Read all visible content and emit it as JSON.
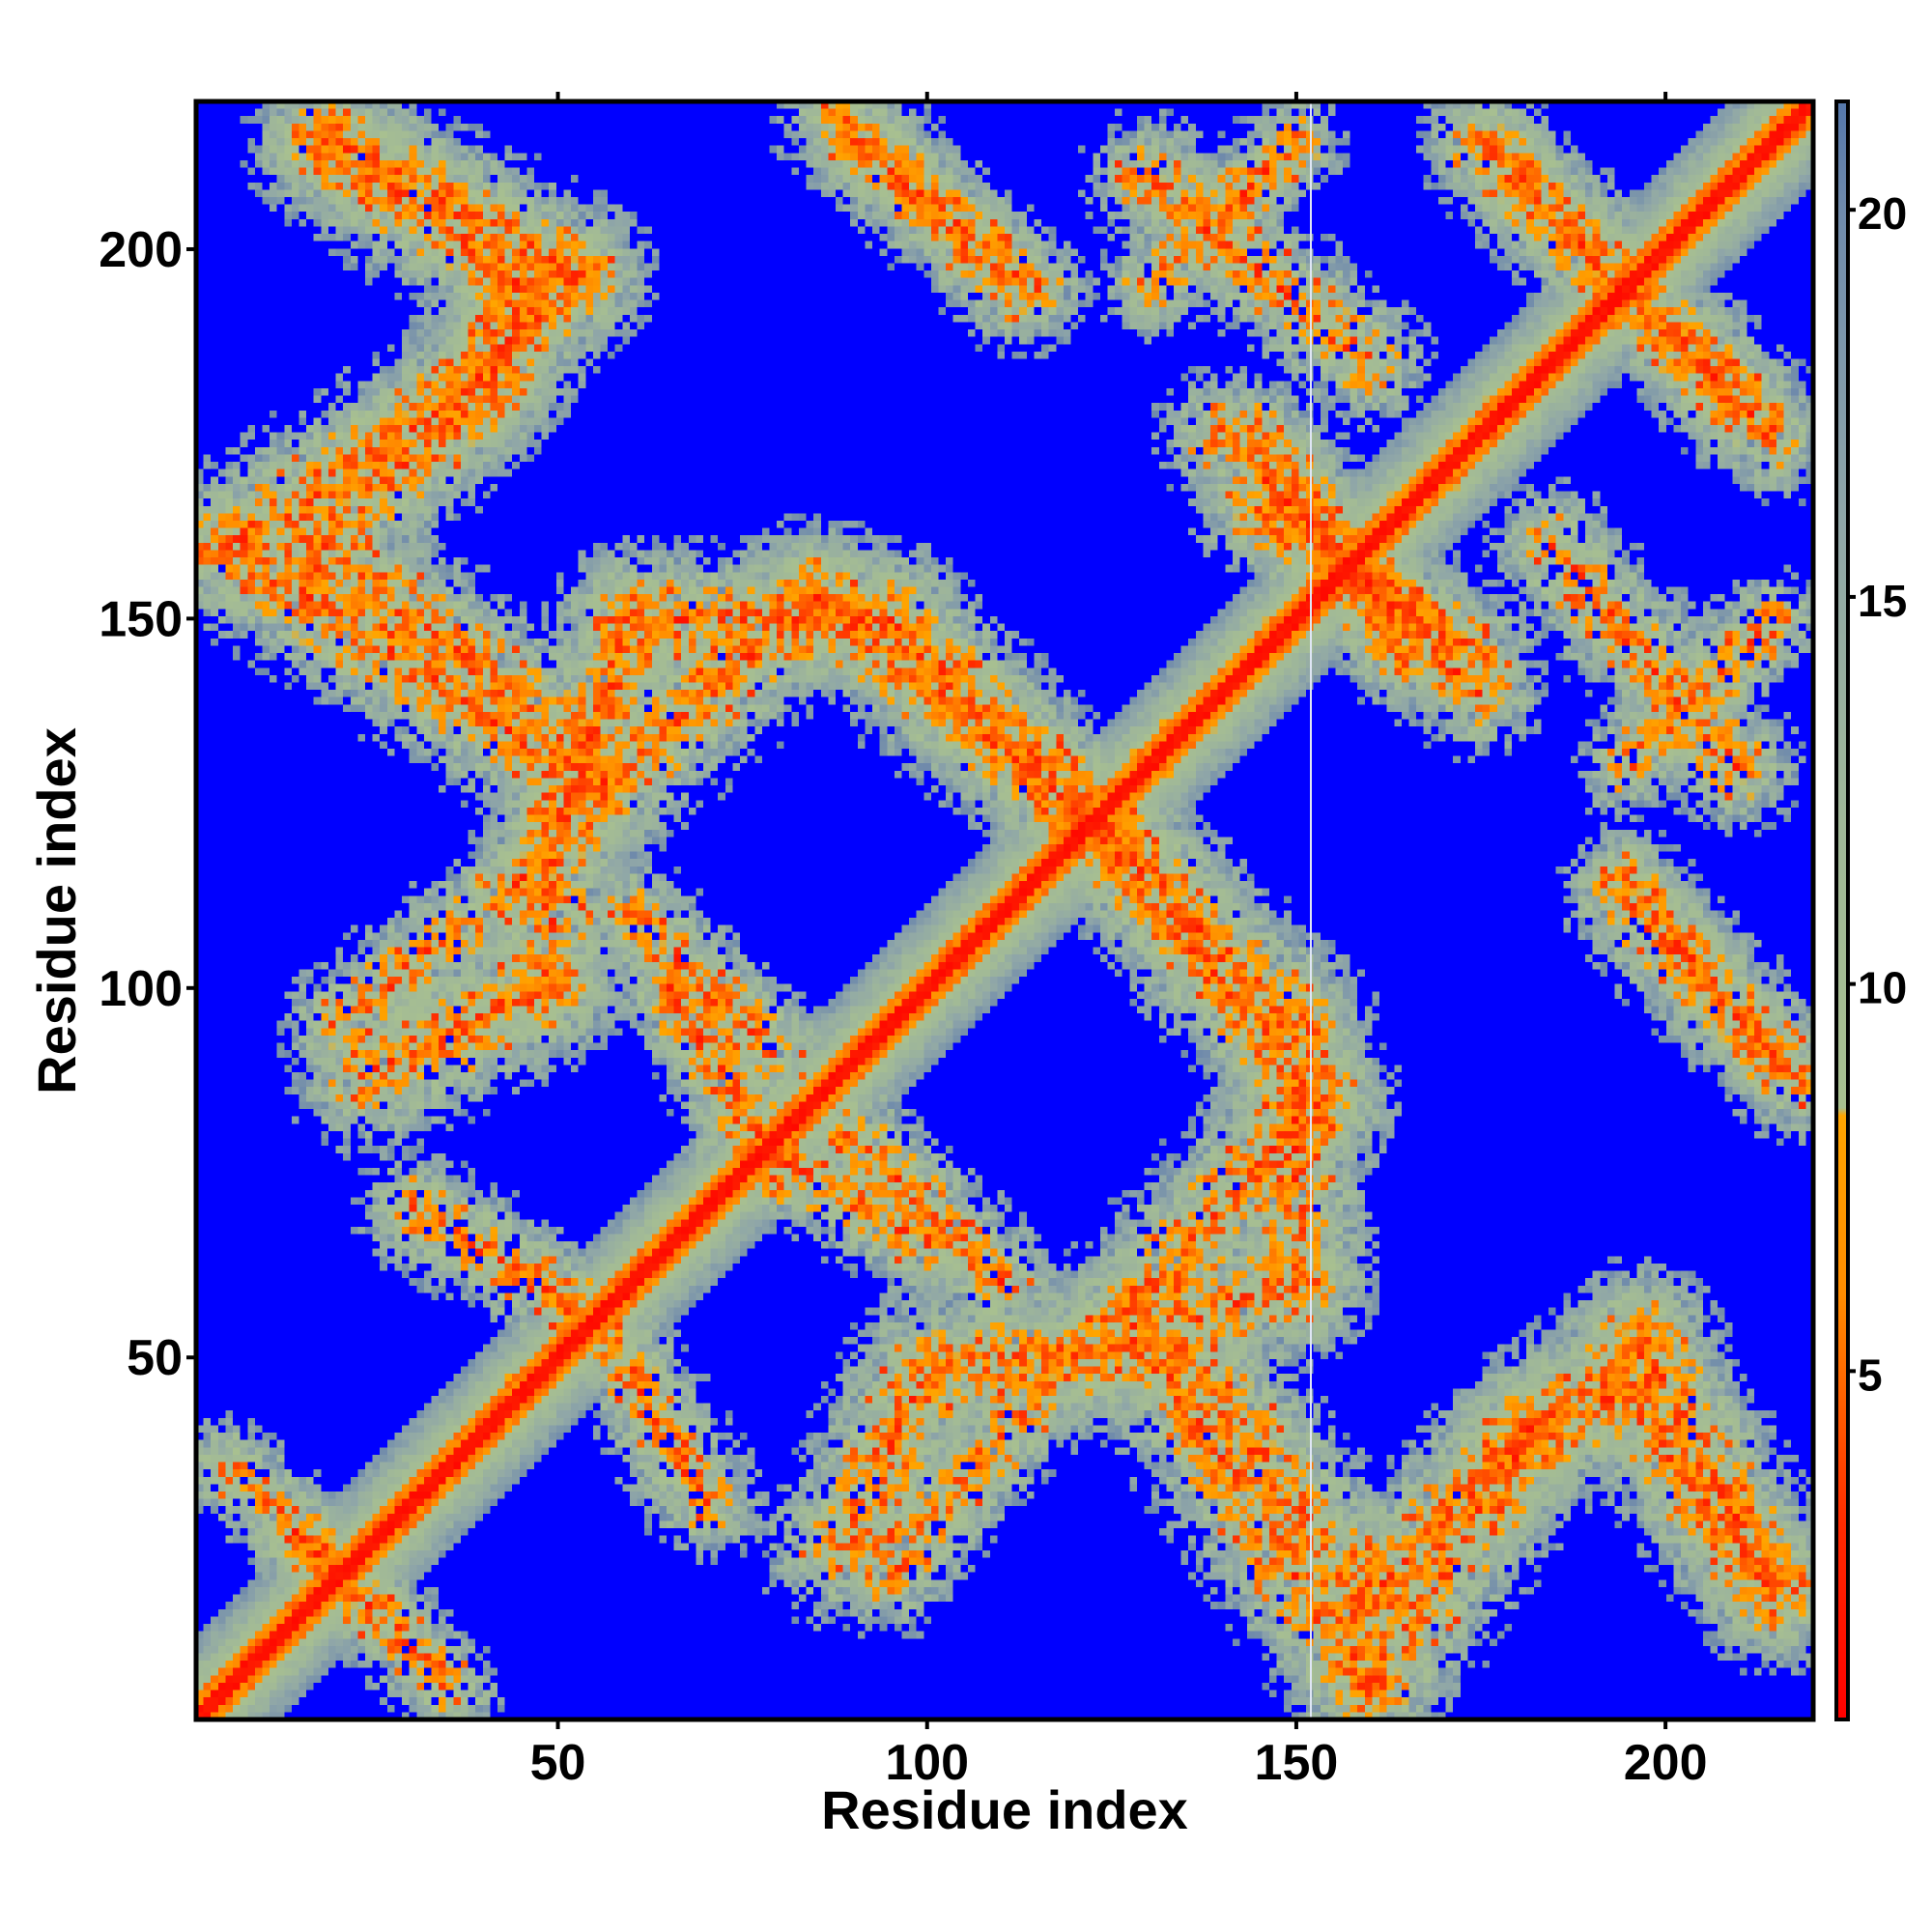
{
  "chart_data": {
    "type": "heatmap",
    "title": "",
    "xlabel": "Residue index",
    "ylabel": "Residue index",
    "xlim": [
      1,
      220
    ],
    "ylim": [
      1,
      220
    ],
    "n_residues": 220,
    "x_ticks": [
      50,
      100,
      150,
      200
    ],
    "y_ticks": [
      50,
      100,
      150,
      200
    ],
    "colorbar": {
      "range": [
        0.5,
        21.4
      ],
      "ticks": [
        5,
        10,
        15,
        20
      ],
      "stops": [
        {
          "value": 0.5,
          "color": "#ff0000"
        },
        {
          "value": 3.0,
          "color": "#ff2a00"
        },
        {
          "value": 6.0,
          "color": "#ff8c00"
        },
        {
          "value": 8.3,
          "color": "#ffa500"
        },
        {
          "value": 8.4,
          "color": "#a8c090"
        },
        {
          "value": 12.0,
          "color": "#a0b898"
        },
        {
          "value": 16.0,
          "color": "#8fa6a8"
        },
        {
          "value": 20.0,
          "color": "#6f8aab"
        },
        {
          "value": 21.4,
          "color": "#5577aa"
        }
      ]
    },
    "background_value_color": "#0000ff",
    "contact_cutoff": 20,
    "diagonal": {
      "description": "distance grows with |i-j|",
      "core_width_residues": 3
    },
    "contact_bands": [
      {
        "from": [
          18,
          215
        ],
        "to": [
          52,
          197
        ],
        "width": 12
      },
      {
        "from": [
          52,
          197
        ],
        "to": [
          36,
          180
        ],
        "width": 12
      },
      {
        "from": [
          36,
          180
        ],
        "to": [
          5,
          160
        ],
        "width": 12
      },
      {
        "from": [
          5,
          160
        ],
        "to": [
          55,
          127
        ],
        "width": 12
      },
      {
        "from": [
          55,
          127
        ],
        "to": [
          85,
          153
        ],
        "width": 12
      },
      {
        "from": [
          85,
          153
        ],
        "to": [
          120,
          125
        ],
        "width": 12
      },
      {
        "from": [
          120,
          125
        ],
        "to": [
          150,
          95
        ],
        "width": 12
      },
      {
        "from": [
          150,
          95
        ],
        "to": [
          150,
          60
        ],
        "width": 12
      },
      {
        "from": [
          150,
          60
        ],
        "to": [
          122,
          50
        ],
        "width": 12
      },
      {
        "from": [
          122,
          50
        ],
        "to": [
          100,
          48
        ],
        "width": 12
      },
      {
        "from": [
          100,
          48
        ],
        "to": [
          88,
          24
        ],
        "width": 12
      },
      {
        "from": [
          135,
          50
        ],
        "to": [
          160,
          17
        ],
        "width": 12
      },
      {
        "from": [
          160,
          17
        ],
        "to": [
          182,
          40
        ],
        "width": 12
      },
      {
        "from": [
          182,
          40
        ],
        "to": [
          195,
          45
        ],
        "width": 12
      },
      {
        "from": [
          195,
          45
        ],
        "to": [
          215,
          18
        ],
        "width": 12
      },
      {
        "from": [
          88,
          218
        ],
        "to": [
          112,
          195
        ],
        "width": 10
      },
      {
        "from": [
          130,
          210
        ],
        "to": [
          160,
          185
        ],
        "width": 10
      },
      {
        "from": [
          140,
          175
        ],
        "to": [
          165,
          150
        ],
        "width": 10
      },
      {
        "from": [
          145,
          165
        ],
        "to": [
          175,
          145
        ],
        "width": 10
      },
      {
        "from": [
          180,
          210
        ],
        "to": [
          215,
          175
        ],
        "width": 10
      },
      {
        "from": [
          195,
          115
        ],
        "to": [
          215,
          90
        ],
        "width": 8
      },
      {
        "from": [
          195,
          130
        ],
        "to": [
          215,
          150
        ],
        "width": 8
      },
      {
        "from": [
          20,
          95
        ],
        "to": [
          45,
          115
        ],
        "width": 9
      },
      {
        "from": [
          30,
          70
        ],
        "to": [
          55,
          55
        ],
        "width": 9
      },
      {
        "from": [
          60,
          110
        ],
        "to": [
          80,
          90
        ],
        "width": 9
      },
      {
        "from": [
          75,
          80
        ],
        "to": [
          100,
          65
        ],
        "width": 9
      },
      {
        "from": [
          5,
          35
        ],
        "to": [
          25,
          15
        ],
        "width": 8
      }
    ]
  }
}
